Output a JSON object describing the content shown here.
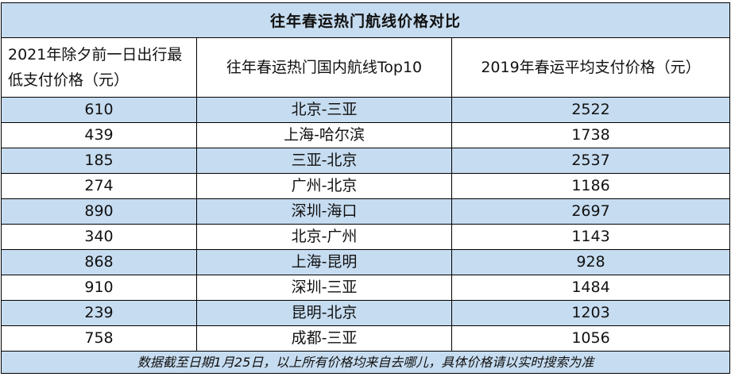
{
  "table": {
    "title": "往年春运热门航线价格对比",
    "headers": [
      "2021年除夕前一日出行最低支付价格（元）",
      "往年春运热门国内航线Top10",
      "2019年春运平均支付价格（元）"
    ],
    "rows": [
      [
        "610",
        "北京-三亚",
        "2522"
      ],
      [
        "439",
        "上海-哈尔滨",
        "1738"
      ],
      [
        "185",
        "三亚-北京",
        "2537"
      ],
      [
        "274",
        "广州-北京",
        "1186"
      ],
      [
        "890",
        "深圳-海口",
        "2697"
      ],
      [
        "340",
        "北京-广州",
        "1143"
      ],
      [
        "868",
        "上海-昆明",
        "928"
      ],
      [
        "910",
        "深圳-三亚",
        "1484"
      ],
      [
        "239",
        "昆明-北京",
        "1203"
      ],
      [
        "758",
        "成都-三亚",
        "1056"
      ]
    ],
    "footnote": "数据截至日期1月25日，以上所有价格均来自去哪儿，具体价格请以实时搜索为准"
  },
  "colors": {
    "band": "#c6dcf0",
    "plain": "#ffffff",
    "border": "#000000"
  }
}
